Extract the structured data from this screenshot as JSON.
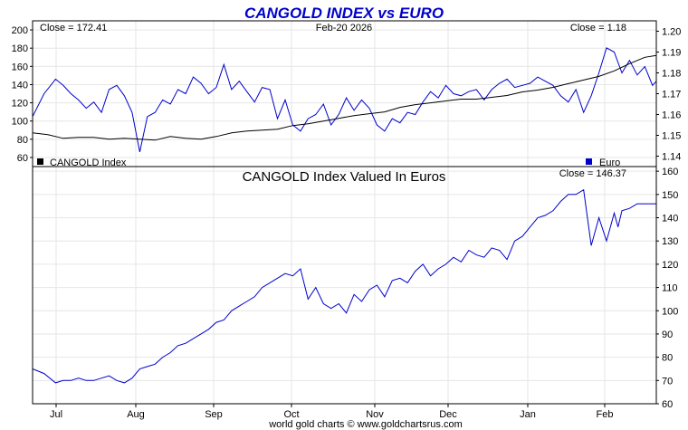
{
  "chart_data": [
    {
      "type": "line",
      "title": "CANGOLD INDEX vs EURO",
      "date_label": "Feb-20  2026",
      "left_close_label": "Close = 172.41",
      "right_close_label": "Close = 1.18",
      "legend": [
        {
          "label": "CANGOLD Index",
          "color": "#000000",
          "position": "bottom-left"
        },
        {
          "label": "Euro",
          "color": "#0000cc",
          "position": "bottom-right"
        }
      ],
      "x_categories": [
        "Jul",
        "Aug",
        "Sep",
        "Oct",
        "Nov",
        "Dec",
        "Jan",
        "Feb"
      ],
      "left_axis": {
        "ylim": [
          50,
          210
        ],
        "ticks": [
          60,
          80,
          100,
          120,
          140,
          160,
          180,
          200
        ]
      },
      "right_axis": {
        "ylim": [
          1.135,
          1.205
        ],
        "ticks": [
          "1.14",
          "1.15",
          "1.16",
          "1.17",
          "1.18",
          "1.19",
          "1.20"
        ]
      },
      "series": [
        {
          "name": "CANGOLD Index",
          "axis": "left",
          "color": "#000000",
          "x": [
            0,
            4,
            8,
            12,
            16,
            20,
            24,
            28,
            32,
            36,
            40,
            44,
            48,
            52,
            56,
            60,
            64,
            68,
            72,
            76,
            80,
            84,
            88,
            92,
            96,
            100,
            104,
            108,
            112,
            116,
            120,
            124,
            128,
            132,
            136,
            140,
            144,
            148,
            152,
            156,
            160,
            163
          ],
          "values": [
            87,
            85,
            81,
            82,
            82,
            80,
            81,
            80,
            79,
            83,
            81,
            80,
            83,
            87,
            89,
            90,
            91,
            95,
            97,
            100,
            103,
            106,
            108,
            110,
            115,
            118,
            120,
            122,
            124,
            124,
            126,
            128,
            132,
            134,
            137,
            141,
            145,
            149,
            155,
            163,
            170,
            172
          ]
        },
        {
          "name": "Euro",
          "axis": "right",
          "color": "#0000cc",
          "x": [
            0,
            3,
            6,
            8,
            10,
            12,
            14,
            16,
            18,
            20,
            22,
            24,
            26,
            28,
            30,
            32,
            34,
            36,
            38,
            40,
            42,
            44,
            46,
            48,
            50,
            52,
            54,
            56,
            58,
            60,
            62,
            64,
            66,
            68,
            70,
            72,
            74,
            76,
            78,
            80,
            82,
            84,
            86,
            88,
            90,
            92,
            94,
            96,
            98,
            100,
            102,
            104,
            106,
            108,
            110,
            112,
            114,
            116,
            118,
            120,
            122,
            124,
            126,
            128,
            130,
            132,
            134,
            136,
            138,
            140,
            142,
            144,
            146,
            148,
            150,
            152,
            153,
            154,
            156,
            158,
            160,
            162,
            163
          ],
          "values": [
            1.159,
            1.17,
            1.177,
            1.174,
            1.17,
            1.167,
            1.163,
            1.166,
            1.161,
            1.172,
            1.174,
            1.169,
            1.161,
            1.142,
            1.159,
            1.161,
            1.167,
            1.165,
            1.172,
            1.17,
            1.178,
            1.175,
            1.17,
            1.173,
            1.184,
            1.172,
            1.176,
            1.171,
            1.166,
            1.173,
            1.172,
            1.158,
            1.167,
            1.155,
            1.152,
            1.158,
            1.16,
            1.165,
            1.155,
            1.16,
            1.168,
            1.162,
            1.167,
            1.163,
            1.155,
            1.152,
            1.158,
            1.156,
            1.161,
            1.16,
            1.166,
            1.171,
            1.168,
            1.174,
            1.17,
            1.169,
            1.171,
            1.172,
            1.167,
            1.172,
            1.175,
            1.177,
            1.173,
            1.174,
            1.175,
            1.178,
            1.176,
            1.174,
            1.169,
            1.166,
            1.172,
            1.161,
            1.169,
            1.18,
            1.192,
            1.19,
            1.185,
            1.18,
            1.186,
            1.179,
            1.183,
            1.174,
            1.176
          ]
        }
      ]
    },
    {
      "type": "line",
      "title": "CANGOLD Index Valued In Euros",
      "close_label": "Close = 146.37",
      "x_categories": [
        "Jul",
        "Aug",
        "Sep",
        "Oct",
        "Nov",
        "Dec",
        "Jan",
        "Feb"
      ],
      "y_axis": {
        "ylim": [
          60,
          162
        ],
        "ticks": [
          60,
          70,
          80,
          90,
          100,
          110,
          120,
          130,
          140,
          150,
          160
        ]
      },
      "series": [
        {
          "name": "CANGOLD Index Valued In Euros",
          "color": "#0000cc",
          "x": [
            0,
            3,
            6,
            8,
            10,
            12,
            14,
            16,
            18,
            20,
            22,
            24,
            26,
            28,
            30,
            32,
            34,
            36,
            38,
            40,
            42,
            44,
            46,
            48,
            50,
            52,
            54,
            56,
            58,
            60,
            62,
            64,
            66,
            68,
            70,
            72,
            74,
            76,
            78,
            80,
            82,
            84,
            86,
            88,
            90,
            92,
            94,
            96,
            98,
            100,
            102,
            104,
            106,
            108,
            110,
            112,
            114,
            116,
            118,
            120,
            122,
            124,
            126,
            128,
            130,
            132,
            134,
            136,
            138,
            140,
            142,
            144,
            146,
            148,
            150,
            152,
            153,
            154,
            156,
            158,
            160,
            162,
            163
          ],
          "values": [
            75,
            73,
            69,
            70,
            70,
            71,
            70,
            70,
            71,
            72,
            70,
            69,
            71,
            75,
            76,
            77,
            80,
            82,
            85,
            86,
            88,
            90,
            92,
            95,
            96,
            100,
            102,
            104,
            106,
            110,
            112,
            114,
            116,
            115,
            118,
            105,
            110,
            103,
            101,
            103,
            99,
            107,
            104,
            109,
            111,
            106,
            113,
            114,
            112,
            117,
            120,
            115,
            118,
            120,
            123,
            121,
            126,
            124,
            123,
            127,
            126,
            122,
            130,
            132,
            136,
            140,
            141,
            143,
            147,
            150,
            150,
            152,
            128,
            140,
            130,
            142,
            136,
            143,
            144,
            146,
            146,
            146,
            146
          ]
        }
      ]
    }
  ],
  "footer": {
    "credit": "world gold charts © www.goldchartsrus.com"
  }
}
